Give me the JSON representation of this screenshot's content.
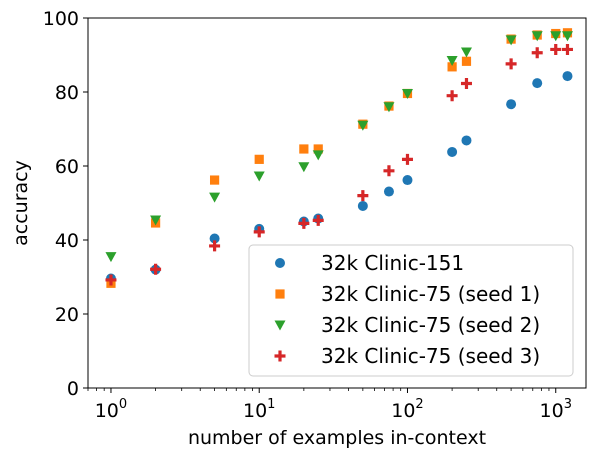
{
  "chart_data": {
    "type": "scatter",
    "xlabel": "number of examples in-context",
    "ylabel": "accuracy",
    "xscale": "log",
    "xlim": [
      0.7,
      1600
    ],
    "ylim": [
      0,
      100
    ],
    "x_ticks": [
      {
        "value": 1,
        "base": "10",
        "exp": "0"
      },
      {
        "value": 10,
        "base": "10",
        "exp": "1"
      },
      {
        "value": 100,
        "base": "10",
        "exp": "2"
      },
      {
        "value": 1000,
        "base": "10",
        "exp": "3"
      }
    ],
    "y_ticks": [
      0,
      20,
      40,
      60,
      80,
      100
    ],
    "grid": false,
    "legend_position": "lower-right",
    "series": [
      {
        "name": "32k Clinic-151",
        "marker": "circle",
        "color": "#1f77b4",
        "points": [
          [
            1,
            29.6
          ],
          [
            2,
            32
          ],
          [
            5,
            40.4
          ],
          [
            10,
            43
          ],
          [
            20,
            45
          ],
          [
            25,
            45.8
          ],
          [
            50,
            49.2
          ],
          [
            75,
            53.1
          ],
          [
            100,
            56.2
          ],
          [
            200,
            63.8
          ],
          [
            250,
            66.9
          ],
          [
            500,
            76.7
          ],
          [
            750,
            82.4
          ],
          [
            1200,
            84.3
          ]
        ]
      },
      {
        "name": "32k Clinic-75 (seed 1)",
        "marker": "square",
        "color": "#ff7f0e",
        "points": [
          [
            1,
            28.3
          ],
          [
            2,
            44.6
          ],
          [
            5,
            56.2
          ],
          [
            10,
            61.8
          ],
          [
            20,
            64.6
          ],
          [
            25,
            64.6
          ],
          [
            50,
            71.3
          ],
          [
            75,
            76.2
          ],
          [
            100,
            79.6
          ],
          [
            200,
            86.8
          ],
          [
            250,
            88.3
          ],
          [
            500,
            94.3
          ],
          [
            750,
            95.4
          ],
          [
            1000,
            95.8
          ],
          [
            1200,
            96
          ]
        ]
      },
      {
        "name": "32k Clinic-75 (seed 2)",
        "marker": "triangle-down",
        "color": "#2ca02c",
        "points": [
          [
            1,
            35.5
          ],
          [
            2,
            45.4
          ],
          [
            5,
            51.6
          ],
          [
            10,
            57.3
          ],
          [
            20,
            59.8
          ],
          [
            25,
            63
          ],
          [
            50,
            71
          ],
          [
            75,
            76
          ],
          [
            100,
            79.6
          ],
          [
            200,
            88.5
          ],
          [
            250,
            90.8
          ],
          [
            500,
            94.1
          ],
          [
            750,
            95.2
          ],
          [
            1000,
            95.2
          ],
          [
            1200,
            95.2
          ]
        ]
      },
      {
        "name": "32k Clinic-75 (seed 3)",
        "marker": "plus",
        "color": "#d62728",
        "points": [
          [
            1,
            29.2
          ],
          [
            2,
            32.1
          ],
          [
            5,
            38.4
          ],
          [
            10,
            42.2
          ],
          [
            20,
            44.5
          ],
          [
            25,
            45.3
          ],
          [
            50,
            52
          ],
          [
            75,
            58.7
          ],
          [
            100,
            61.8
          ],
          [
            200,
            79
          ],
          [
            250,
            82.3
          ],
          [
            500,
            87.6
          ],
          [
            750,
            90.6
          ],
          [
            1000,
            91.5
          ],
          [
            1200,
            91.5
          ]
        ]
      }
    ]
  }
}
